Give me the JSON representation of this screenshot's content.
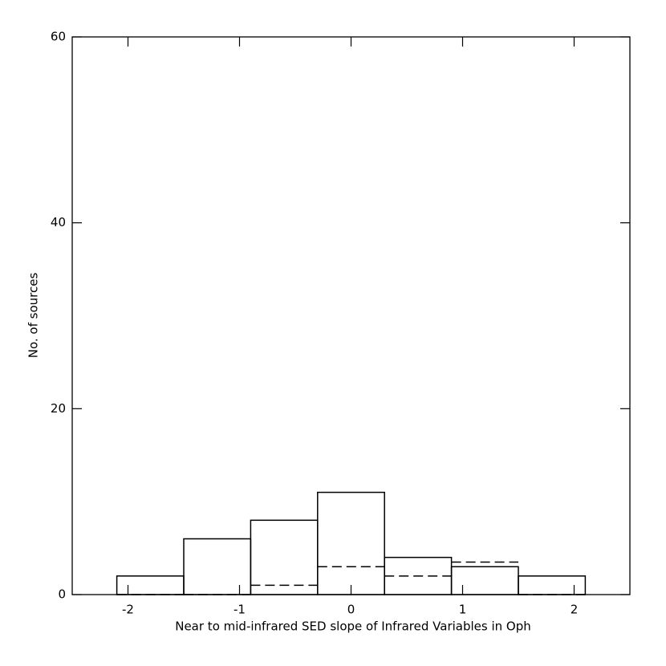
{
  "chart_data": {
    "type": "histogram",
    "xlabel": "Near to mid-infrared SED slope of Infrared Variables in Oph",
    "ylabel": "No. of sources",
    "bins": [
      -2.1,
      -1.5,
      -0.9,
      -0.3,
      0.3,
      0.9,
      1.5,
      2.1
    ],
    "series": [
      {
        "color": "#000000",
        "linestyle": "solid",
        "values": [
          2,
          6,
          8,
          11,
          4,
          3,
          2
        ]
      },
      {
        "color": "#000000",
        "linestyle": "dashed",
        "values": [
          0,
          0,
          1,
          3,
          2,
          3.5,
          0
        ]
      }
    ],
    "xlim": [
      -2.5,
      2.5
    ],
    "xticks": [
      -2,
      -1,
      0,
      1,
      2
    ],
    "ylim": [
      0,
      60
    ],
    "yticks": [
      0,
      20,
      40,
      60
    ]
  }
}
